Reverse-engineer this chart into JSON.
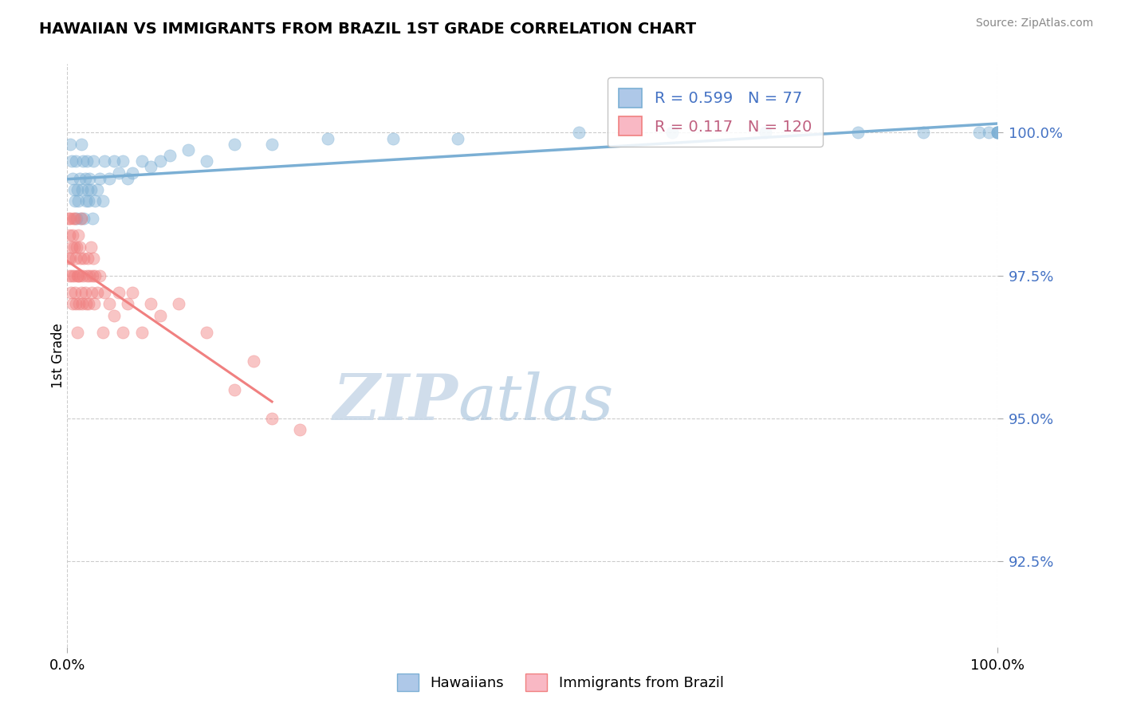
{
  "title": "HAWAIIAN VS IMMIGRANTS FROM BRAZIL 1ST GRADE CORRELATION CHART",
  "source": "Source: ZipAtlas.com",
  "ylabel": "1st Grade",
  "x_min": 0.0,
  "x_max": 100.0,
  "y_min": 91.0,
  "y_max": 101.2,
  "y_ticks": [
    92.5,
    95.0,
    97.5,
    100.0
  ],
  "y_tick_labels": [
    "92.5%",
    "95.0%",
    "97.5%",
    "100.0%"
  ],
  "blue_color": "#7bafd4",
  "pink_color": "#f08080",
  "blue_fill": "#aec8e8",
  "pink_fill": "#f9b8c4",
  "R_blue": 0.599,
  "N_blue": 77,
  "R_pink": 0.117,
  "N_pink": 120,
  "legend_label_blue": "Hawaiians",
  "legend_label_pink": "Immigrants from Brazil",
  "watermark_zip": "ZIP",
  "watermark_atlas": "atlas",
  "blue_x": [
    0.3,
    0.5,
    0.6,
    0.7,
    0.8,
    0.9,
    1.0,
    1.1,
    1.2,
    1.3,
    1.4,
    1.5,
    1.6,
    1.7,
    1.8,
    1.9,
    2.0,
    2.1,
    2.2,
    2.3,
    2.4,
    2.5,
    2.7,
    2.8,
    3.0,
    3.2,
    3.5,
    3.8,
    4.0,
    4.5,
    5.0,
    5.5,
    6.0,
    6.5,
    7.0,
    8.0,
    9.0,
    10.0,
    11.0,
    13.0,
    15.0,
    18.0,
    22.0,
    28.0,
    35.0,
    42.0,
    55.0,
    65.0,
    75.0,
    85.0,
    92.0,
    98.0,
    99.0,
    100.0,
    100.0,
    100.0,
    100.0
  ],
  "blue_y": [
    99.8,
    99.5,
    99.2,
    99.0,
    98.8,
    99.5,
    98.5,
    99.0,
    98.8,
    99.2,
    98.5,
    99.8,
    99.0,
    99.5,
    98.5,
    99.2,
    98.8,
    99.5,
    99.0,
    98.8,
    99.2,
    99.0,
    98.5,
    99.5,
    98.8,
    99.0,
    99.2,
    98.8,
    99.5,
    99.2,
    99.5,
    99.3,
    99.5,
    99.2,
    99.3,
    99.5,
    99.4,
    99.5,
    99.6,
    99.7,
    99.5,
    99.8,
    99.8,
    99.9,
    99.9,
    99.9,
    100.0,
    100.0,
    100.0,
    100.0,
    100.0,
    100.0,
    100.0,
    100.0,
    100.0,
    100.0,
    100.0
  ],
  "pink_x": [
    0.1,
    0.15,
    0.2,
    0.25,
    0.3,
    0.35,
    0.4,
    0.45,
    0.5,
    0.55,
    0.6,
    0.65,
    0.7,
    0.75,
    0.8,
    0.85,
    0.9,
    0.95,
    1.0,
    1.05,
    1.1,
    1.15,
    1.2,
    1.25,
    1.3,
    1.35,
    1.4,
    1.5,
    1.55,
    1.6,
    1.7,
    1.8,
    1.9,
    2.0,
    2.1,
    2.2,
    2.3,
    2.4,
    2.5,
    2.6,
    2.7,
    2.8,
    2.9,
    3.0,
    3.2,
    3.5,
    3.8,
    4.0,
    4.5,
    5.0,
    5.5,
    6.0,
    6.5,
    7.0,
    8.0,
    9.0,
    10.0,
    12.0,
    15.0,
    18.0,
    20.0,
    22.0,
    25.0
  ],
  "pink_y": [
    98.5,
    97.8,
    98.2,
    97.5,
    97.8,
    98.5,
    97.2,
    98.0,
    97.5,
    98.2,
    97.0,
    98.5,
    97.5,
    98.0,
    97.2,
    98.5,
    97.8,
    97.0,
    98.0,
    97.5,
    96.5,
    98.2,
    97.5,
    97.0,
    98.0,
    97.5,
    97.8,
    97.2,
    98.5,
    97.0,
    97.5,
    97.8,
    97.2,
    97.0,
    97.5,
    97.8,
    97.0,
    97.5,
    98.0,
    97.2,
    97.5,
    97.8,
    97.0,
    97.5,
    97.2,
    97.5,
    96.5,
    97.2,
    97.0,
    96.8,
    97.2,
    96.5,
    97.0,
    97.2,
    96.5,
    97.0,
    96.8,
    97.0,
    96.5,
    95.5,
    96.0,
    95.0,
    94.8
  ]
}
